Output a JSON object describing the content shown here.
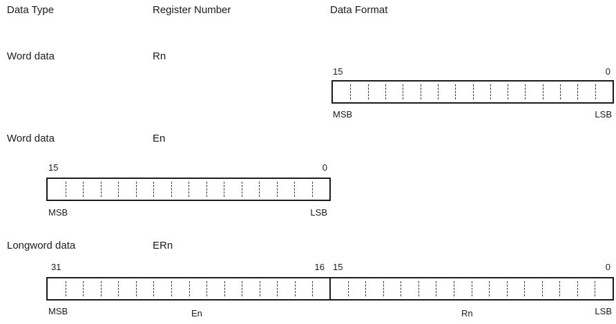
{
  "headers": {
    "data_type": "Data Type",
    "register_number": "Register Number",
    "data_format": "Data Format"
  },
  "rows": [
    {
      "type": "Word data",
      "register": "Rn",
      "bit_high": "15",
      "bit_low": "0",
      "msb": "MSB",
      "lsb": "LSB"
    },
    {
      "type": "Word data",
      "register": "En",
      "bit_high": "15",
      "bit_low": "0",
      "msb": "MSB",
      "lsb": "LSB"
    },
    {
      "type": "Longword data",
      "register": "ERn",
      "bit_31": "31",
      "bit_16": "16",
      "bit_15": "15",
      "bit_0": "0",
      "msb": "MSB",
      "upper_half": "En",
      "lower_half": "Rn",
      "lsb": "LSB"
    }
  ]
}
